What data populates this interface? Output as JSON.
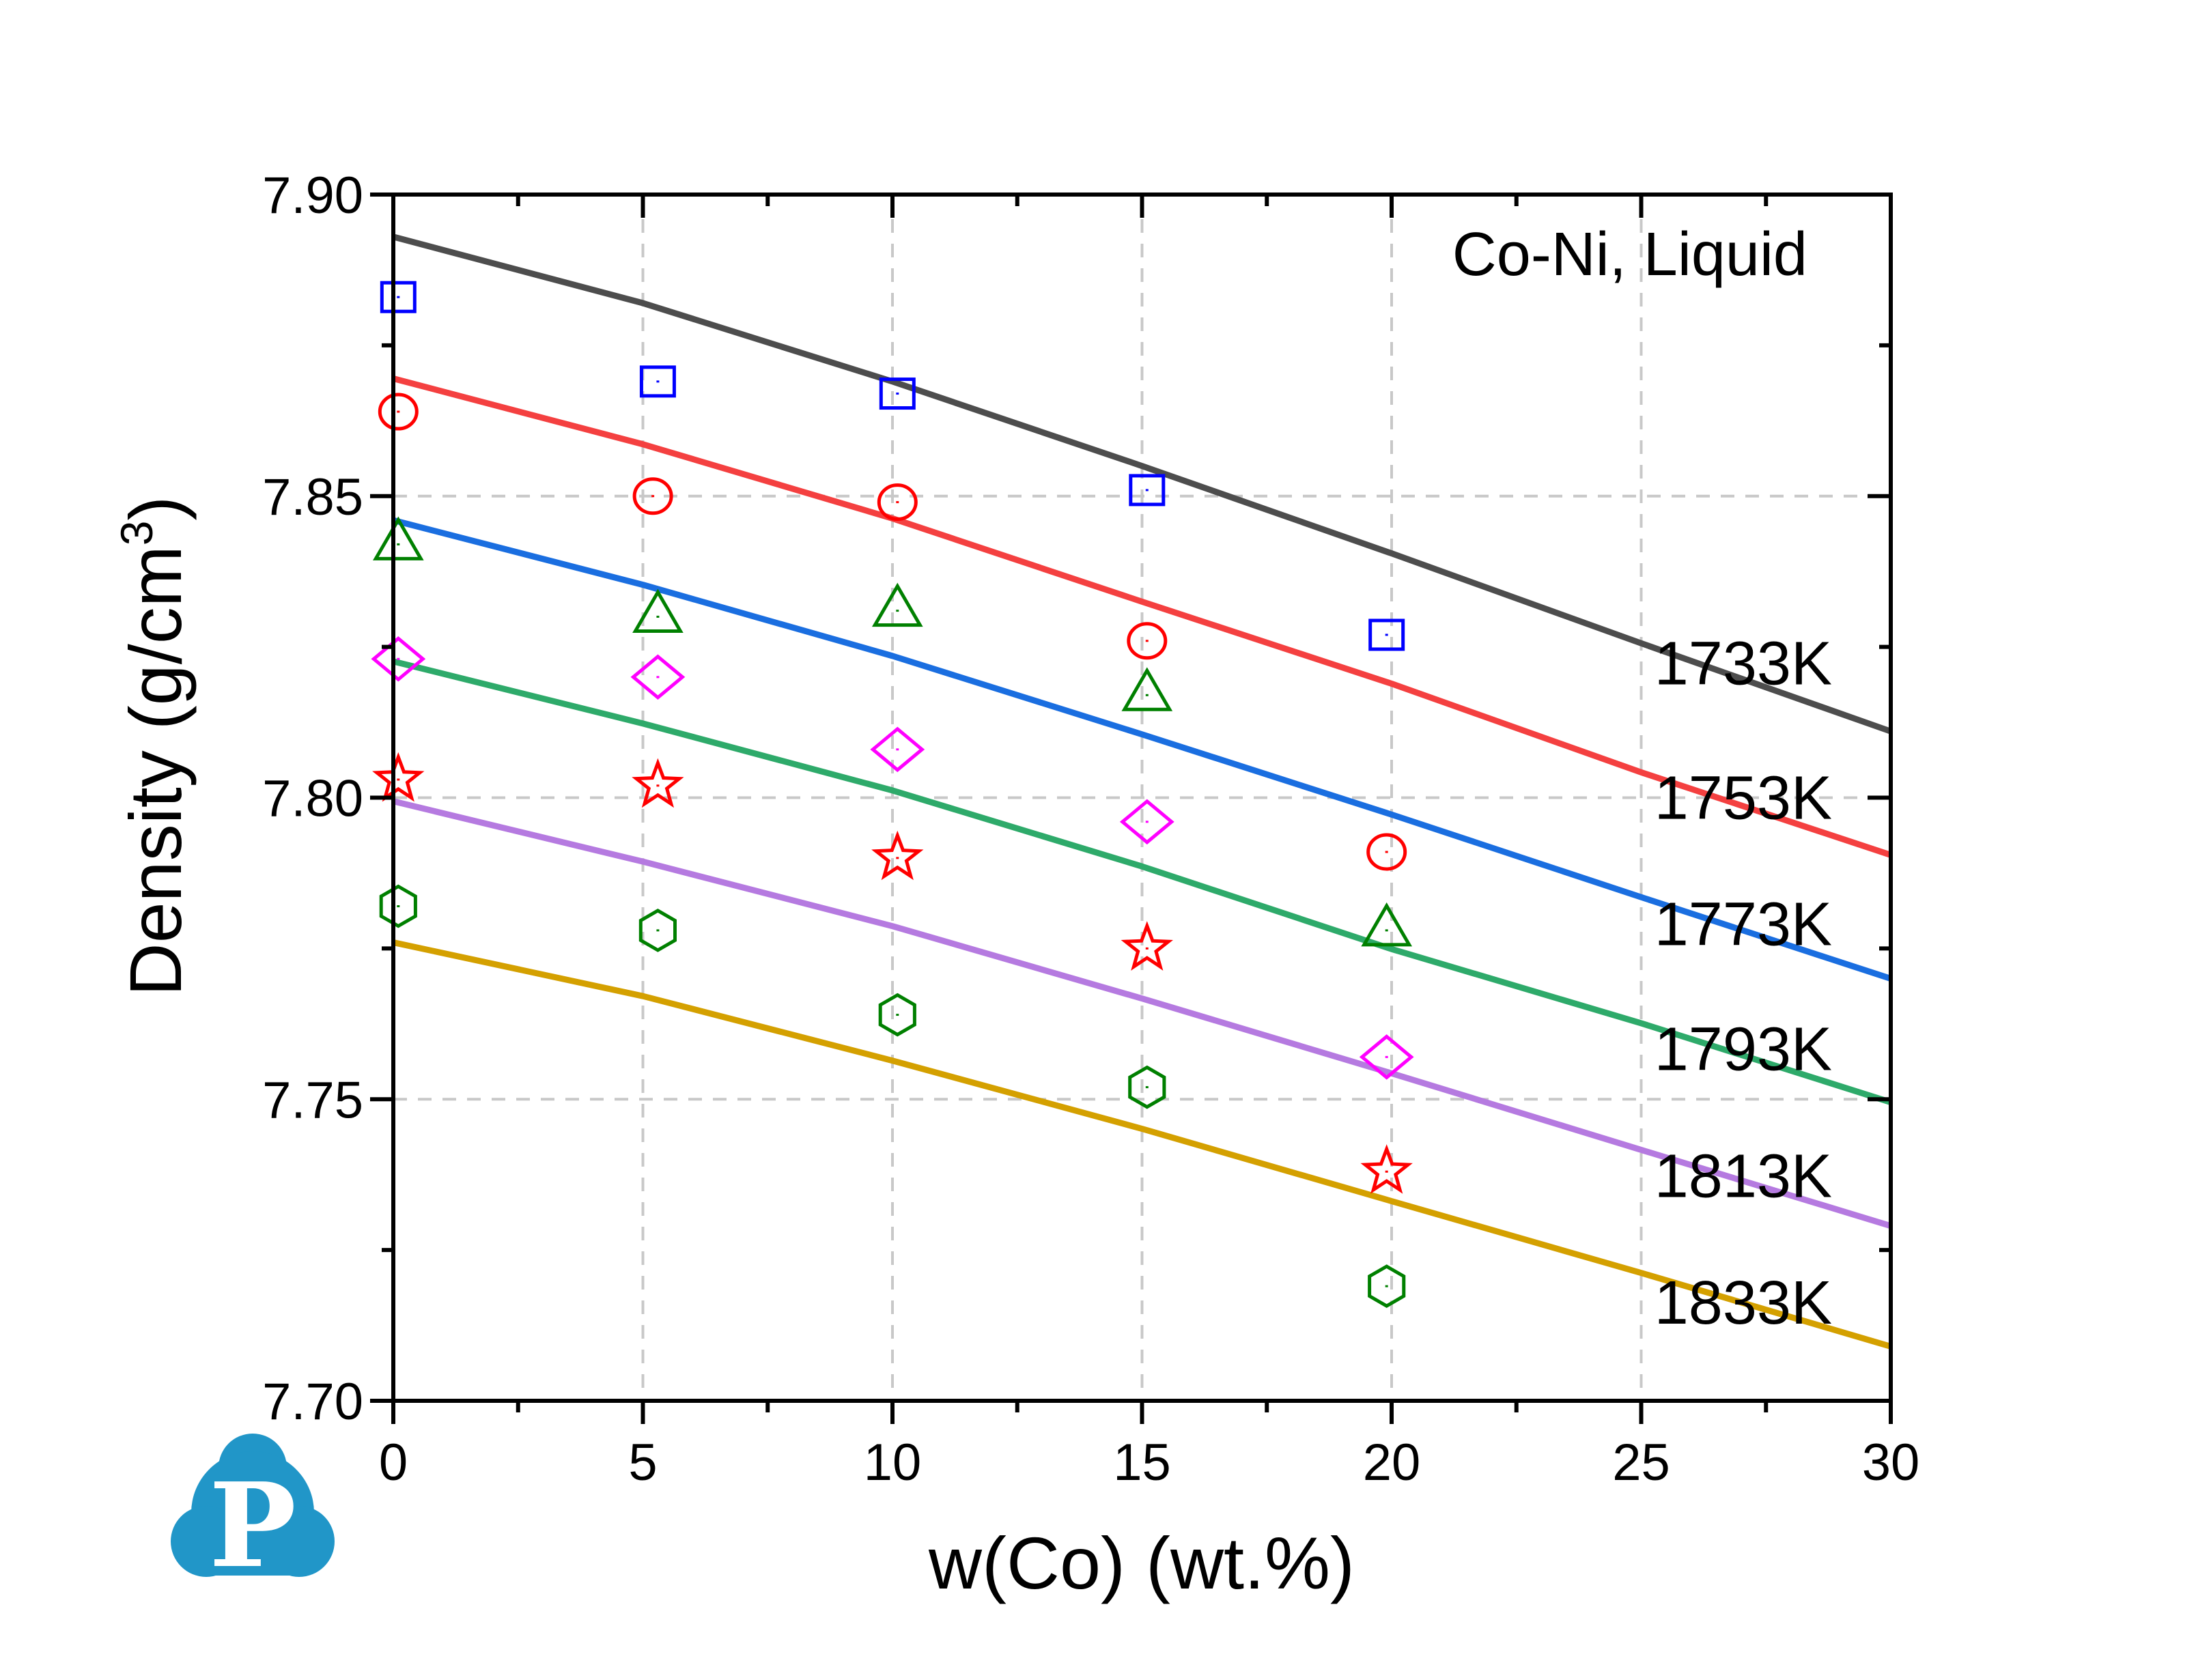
{
  "chart_data": {
    "type": "line",
    "title": "",
    "annotation": "Co-Ni, Liquid",
    "xlabel": "w(Co) (wt.%)",
    "ylabel_main": "Density (g/cm",
    "ylabel_sup": "3",
    "ylabel_close": ")",
    "xlim": [
      0,
      30
    ],
    "ylim": [
      7.7,
      7.9
    ],
    "xticks": [
      0,
      5,
      10,
      15,
      20,
      25,
      30
    ],
    "xtick_labels": [
      "0",
      "5",
      "10",
      "15",
      "20",
      "25",
      "30"
    ],
    "yticks": [
      7.7,
      7.75,
      7.8,
      7.85,
      7.9
    ],
    "ytick_labels": [
      "7.70",
      "7.75",
      "7.80",
      "7.85",
      "7.90"
    ],
    "grid": true,
    "grid_style": "dashed",
    "legend": "none (inline labels at right)",
    "calculated_x": [
      0,
      5,
      10,
      15,
      20,
      25,
      30
    ],
    "series": [
      {
        "name": "1733K",
        "line_color": "#4d4d4d",
        "calculated": [
          7.893,
          7.882,
          7.869,
          7.855,
          7.8405,
          7.8256,
          7.811
        ],
        "marker": "square",
        "marker_color": "#0000ff",
        "experimental_x": [
          0.1,
          5.3,
          10.1,
          15.1,
          19.9
        ],
        "experimental": [
          7.883,
          7.869,
          7.867,
          7.851,
          7.827
        ]
      },
      {
        "name": "1753K",
        "line_color": "#f44040",
        "calculated": [
          7.8695,
          7.8586,
          7.8463,
          7.8325,
          7.8189,
          7.8042,
          7.7905
        ],
        "marker": "circle",
        "marker_color": "#ff0000",
        "experimental_x": [
          0.1,
          5.2,
          10.1,
          15.1,
          19.9
        ],
        "experimental": [
          7.864,
          7.85,
          7.849,
          7.826,
          7.791
        ]
      },
      {
        "name": "1773K",
        "line_color": "#1a6ee0",
        "calculated": [
          7.846,
          7.8353,
          7.8235,
          7.8105,
          7.7972,
          7.7835,
          7.77
        ],
        "marker": "triangle",
        "marker_color": "#008000",
        "experimental_x": [
          0.1,
          5.3,
          10.1,
          15.1,
          19.9
        ],
        "experimental": [
          7.842,
          7.83,
          7.831,
          7.817,
          7.778
        ]
      },
      {
        "name": "1793K",
        "line_color": "#2eaa6a",
        "calculated": [
          7.8226,
          7.8123,
          7.8012,
          7.7886,
          7.7749,
          7.7626,
          7.7495
        ],
        "marker": "diamond",
        "marker_color": "#ff00ff",
        "experimental_x": [
          0.1,
          5.3,
          10.1,
          15.1,
          19.9
        ],
        "experimental": [
          7.823,
          7.82,
          7.808,
          7.796,
          7.757
        ]
      },
      {
        "name": "1813K",
        "line_color": "#b57ae0",
        "calculated": [
          7.7994,
          7.7894,
          7.7787,
          7.7667,
          7.7543,
          7.7416,
          7.729
        ],
        "marker": "star",
        "marker_color": "#ff0000",
        "experimental_x": [
          0.1,
          5.3,
          10.1,
          15.1,
          19.9
        ],
        "experimental": [
          7.803,
          7.802,
          7.79,
          7.775,
          7.738
        ]
      },
      {
        "name": "1833K",
        "line_color": "#d4a000",
        "calculated": [
          7.776,
          7.7671,
          7.7564,
          7.7451,
          7.7331,
          7.7212,
          7.709
        ],
        "marker": "hexagon",
        "marker_color": "#008000",
        "experimental_x": [
          0.1,
          5.3,
          10.1,
          15.1,
          19.9
        ],
        "experimental": [
          7.782,
          7.778,
          7.764,
          7.752,
          7.719
        ]
      }
    ],
    "series_label_values": [
      7.8225,
      7.8002,
      7.7793,
      7.7586,
      7.7375,
      7.7165
    ]
  },
  "logo": {
    "letter": "P",
    "color": "#2196c8",
    "name": "brand-logo"
  }
}
